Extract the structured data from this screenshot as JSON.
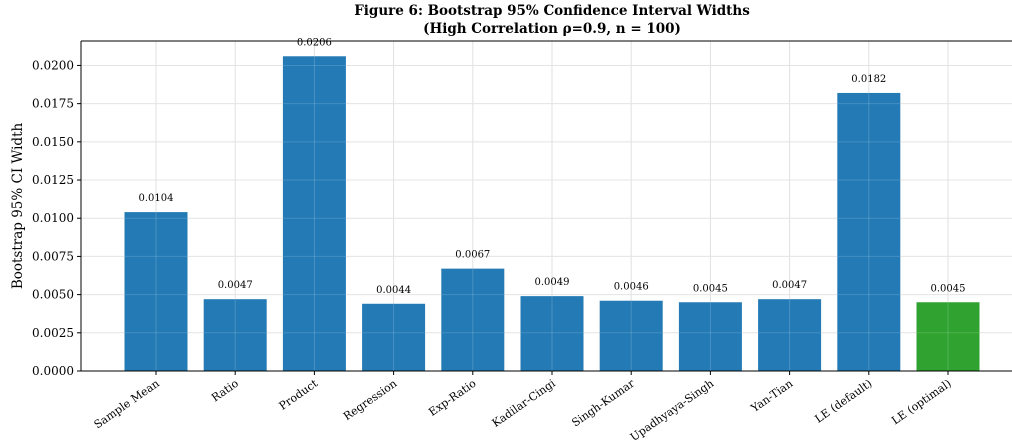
{
  "chart_data": {
    "type": "bar",
    "title": "Figure 6: Bootstrap 95% Confidence Interval Widths",
    "subtitle": "(High Correlation ρ=0.9, n = 100)",
    "ylabel": "Bootstrap 95% CI Width",
    "xlabel": "",
    "categories": [
      "Sample Mean",
      "Ratio",
      "Product",
      "Regression",
      "Exp-Ratio",
      "Kadilar-Cingi",
      "Singh-Kumar",
      "Upadhyaya-Singh",
      "Yan-Tian",
      "LE (default)",
      "LE (optimal)"
    ],
    "values": [
      0.0104,
      0.0047,
      0.0206,
      0.0044,
      0.0067,
      0.0049,
      0.0046,
      0.0045,
      0.0047,
      0.0182,
      0.0045
    ],
    "value_labels": [
      "0.0104",
      "0.0047",
      "0.0206",
      "0.0044",
      "0.0067",
      "0.0049",
      "0.0046",
      "0.0045",
      "0.0047",
      "0.0182",
      "0.0045"
    ],
    "bar_colors": [
      "#1f77b4",
      "#1f77b4",
      "#1f77b4",
      "#1f77b4",
      "#1f77b4",
      "#1f77b4",
      "#1f77b4",
      "#1f77b4",
      "#1f77b4",
      "#1f77b4",
      "#2ca02c"
    ],
    "ylim": [
      0,
      0.0216
    ],
    "yticks": [
      "0.0000",
      "0.0025",
      "0.0050",
      "0.0075",
      "0.0100",
      "0.0125",
      "0.0150",
      "0.0175",
      "0.0200"
    ],
    "grid": true
  }
}
